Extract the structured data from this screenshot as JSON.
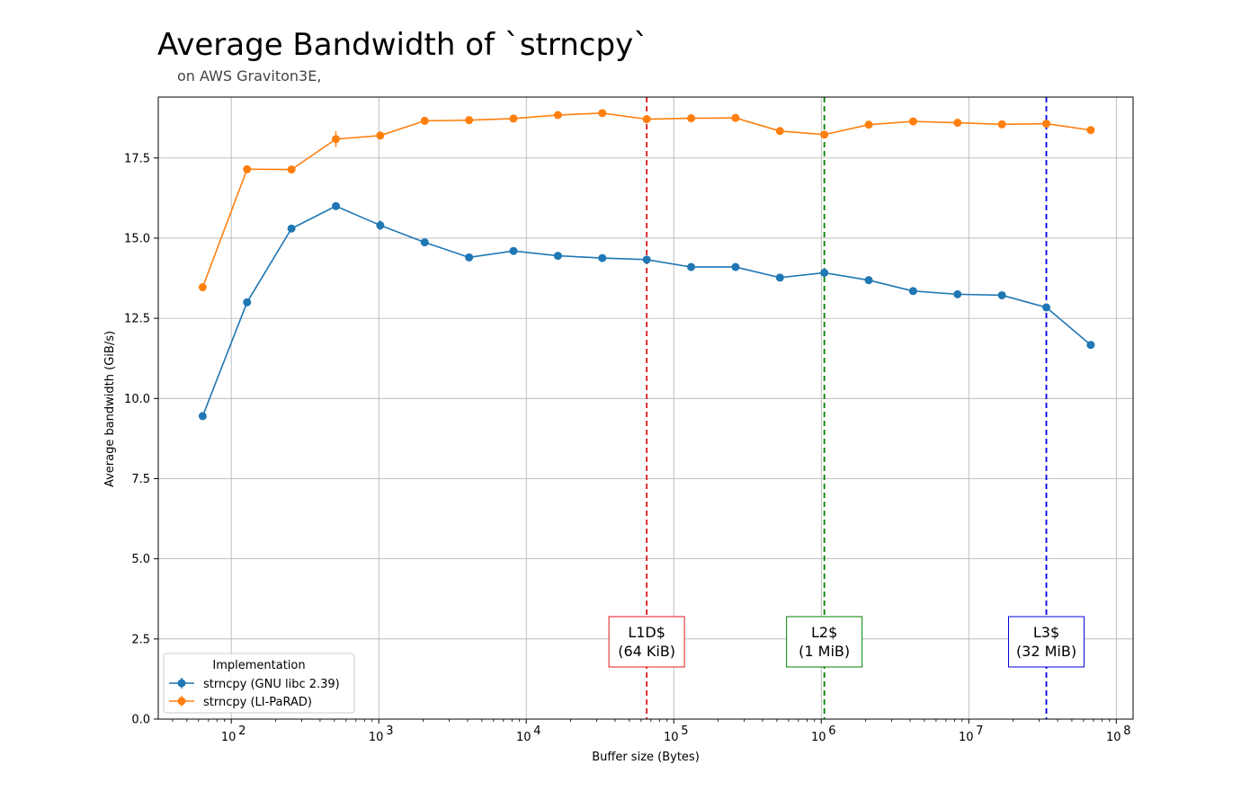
{
  "chart_data": {
    "type": "line",
    "title": "Average Bandwidth of `strncpy`",
    "subtitle": "on AWS Graviton3E,",
    "xlabel": "Buffer size (Bytes)",
    "ylabel": "Average bandwidth (GiB/s)",
    "xscale": "log",
    "xlim": [
      32,
      130000000
    ],
    "ylim": [
      0,
      19.4
    ],
    "x_ticks": [
      {
        "value": 100,
        "label": "10",
        "exp": "2"
      },
      {
        "value": 1000,
        "label": "10",
        "exp": "3"
      },
      {
        "value": 10000,
        "label": "10",
        "exp": "4"
      },
      {
        "value": 100000,
        "label": "10",
        "exp": "5"
      },
      {
        "value": 1000000,
        "label": "10",
        "exp": "6"
      },
      {
        "value": 10000000,
        "label": "10",
        "exp": "7"
      },
      {
        "value": 100000000,
        "label": "10",
        "exp": "8"
      }
    ],
    "y_ticks": [
      {
        "value": 0,
        "label": "0.0"
      },
      {
        "value": 2.5,
        "label": "2.5"
      },
      {
        "value": 5,
        "label": "5.0"
      },
      {
        "value": 7.5,
        "label": "7.5"
      },
      {
        "value": 10,
        "label": "10.0"
      },
      {
        "value": 12.5,
        "label": "12.5"
      },
      {
        "value": 15,
        "label": "15.0"
      },
      {
        "value": 17.5,
        "label": "17.5"
      }
    ],
    "grid": true,
    "legend": {
      "title": "Implementation",
      "placement": "lower-left"
    },
    "x": [
      64,
      128,
      256,
      512,
      1024,
      2048,
      4096,
      8192,
      16384,
      32768,
      65536,
      131072,
      262144,
      524288,
      1048576,
      2097152,
      4194304,
      8388608,
      16777216,
      33554432,
      67108864
    ],
    "series": [
      {
        "name": "strncpy (GNU libc 2.39)",
        "color": "#1f77b4",
        "values": [
          9.45,
          13.0,
          15.3,
          16.0,
          15.4,
          14.87,
          14.4,
          14.6,
          14.45,
          14.38,
          14.33,
          14.1,
          14.1,
          13.77,
          13.92,
          13.69,
          13.35,
          13.25,
          13.22,
          12.84,
          11.67
        ],
        "errors": [
          0,
          0,
          0,
          0,
          0.15,
          0,
          0,
          0,
          0,
          0,
          0,
          0,
          0,
          0,
          0,
          0,
          0,
          0,
          0,
          0,
          0
        ]
      },
      {
        "name": "strncpy (LI-PaRAD)",
        "color": "#ff7f0e",
        "values": [
          13.47,
          17.15,
          17.14,
          18.09,
          18.2,
          18.66,
          18.68,
          18.73,
          18.84,
          18.9,
          18.71,
          18.74,
          18.75,
          18.34,
          18.23,
          18.54,
          18.64,
          18.6,
          18.55,
          18.57,
          18.37
        ],
        "errors": [
          0,
          0,
          0,
          0.25,
          0,
          0,
          0,
          0,
          0,
          0,
          0,
          0,
          0,
          0,
          0,
          0,
          0,
          0,
          0,
          0,
          0
        ]
      }
    ],
    "cache_lines": [
      {
        "x": 65536,
        "line1": "L1D$",
        "line2": "(64 KiB)",
        "color": "#e41a1c"
      },
      {
        "x": 1048576,
        "line1": "L2$",
        "line2": "(1 MiB)",
        "color": "#008000"
      },
      {
        "x": 33554432,
        "line1": "L3$",
        "line2": "(32 MiB)",
        "color": "#0000e0"
      }
    ]
  }
}
